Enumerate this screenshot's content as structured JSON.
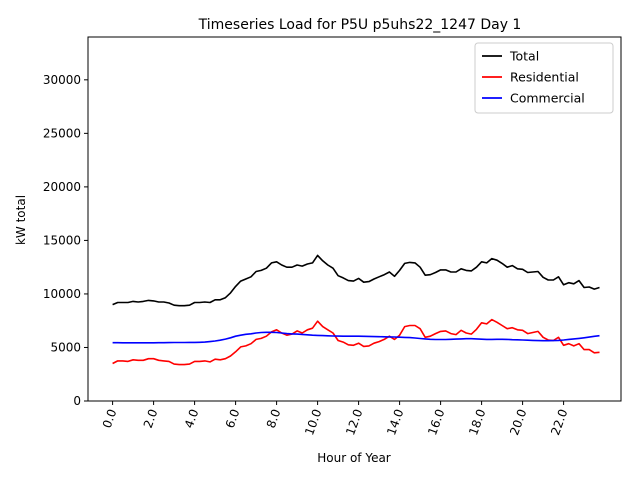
{
  "chart_data": {
    "type": "line",
    "title": "Timeseries Load for P5U p5uhs22_1247  Day 1",
    "xlabel": "Hour of Year",
    "ylabel": "kW total",
    "xlim": [
      -1.2,
      24.8
    ],
    "ylim": [
      0,
      34000
    ],
    "x_ticks": [
      0,
      2,
      4,
      6,
      8,
      10,
      12,
      14,
      16,
      18,
      20,
      22
    ],
    "x_tick_labels": [
      "0.0",
      "2.0",
      "4.0",
      "6.0",
      "8.0",
      "10.0",
      "12.0",
      "14.0",
      "16.0",
      "18.0",
      "20.0",
      "22.0"
    ],
    "y_ticks": [
      0,
      5000,
      10000,
      15000,
      20000,
      25000,
      30000
    ],
    "y_tick_labels": [
      "0",
      "5000",
      "10000",
      "15000",
      "20000",
      "25000",
      "30000"
    ],
    "legend_position": "top-right",
    "x": [
      0,
      0.25,
      0.5,
      0.75,
      1,
      1.25,
      1.5,
      1.75,
      2,
      2.25,
      2.5,
      2.75,
      3,
      3.25,
      3.5,
      3.75,
      4,
      4.25,
      4.5,
      4.75,
      5,
      5.25,
      5.5,
      5.75,
      6,
      6.25,
      6.5,
      6.75,
      7,
      7.25,
      7.5,
      7.75,
      8,
      8.25,
      8.5,
      8.75,
      9,
      9.25,
      9.5,
      9.75,
      10,
      10.25,
      10.5,
      10.75,
      11,
      11.25,
      11.5,
      11.75,
      12,
      12.25,
      12.5,
      12.75,
      13,
      13.25,
      13.5,
      13.75,
      14,
      14.25,
      14.5,
      14.75,
      15,
      15.25,
      15.5,
      15.75,
      16,
      16.25,
      16.5,
      16.75,
      17,
      17.25,
      17.5,
      17.75,
      18,
      18.25,
      18.5,
      18.75,
      19,
      19.25,
      19.5,
      19.75,
      20,
      20.25,
      20.5,
      20.75,
      21,
      21.25,
      21.5,
      21.75,
      22,
      22.25,
      22.5,
      22.75,
      23,
      23.25,
      23.5,
      23.75
    ],
    "series": [
      {
        "name": "Total",
        "color": "#000000",
        "values": [
          9000,
          9200,
          9200,
          9200,
          9300,
          9250,
          9300,
          9400,
          9350,
          9250,
          9250,
          9150,
          8950,
          8900,
          8900,
          8950,
          9200,
          9200,
          9250,
          9200,
          9450,
          9450,
          9650,
          10100,
          10700,
          11200,
          11400,
          11600,
          12100,
          12200,
          12400,
          12900,
          13000,
          12700,
          12500,
          12500,
          12700,
          12600,
          12800,
          12900,
          13600,
          13100,
          12700,
          12400,
          11700,
          11500,
          11250,
          11200,
          11450,
          11100,
          11150,
          11400,
          11600,
          11800,
          12050,
          11650,
          12200,
          12850,
          12950,
          12900,
          12500,
          11750,
          11800,
          12000,
          12250,
          12250,
          12050,
          12050,
          12350,
          12200,
          12150,
          12500,
          13000,
          12900,
          13300,
          13150,
          12850,
          12500,
          12650,
          12350,
          12300,
          12000,
          12050,
          12100,
          11550,
          11300,
          11300,
          11600,
          10850,
          11050,
          10950,
          11250,
          10600,
          10650,
          10450,
          10600
        ]
      },
      {
        "name": "Residential",
        "color": "#ff0000",
        "values": [
          3500,
          3750,
          3750,
          3700,
          3850,
          3800,
          3800,
          3950,
          3950,
          3800,
          3750,
          3700,
          3450,
          3400,
          3400,
          3450,
          3700,
          3700,
          3750,
          3650,
          3900,
          3850,
          3950,
          4200,
          4600,
          5050,
          5150,
          5350,
          5750,
          5850,
          6050,
          6450,
          6650,
          6350,
          6150,
          6250,
          6550,
          6350,
          6650,
          6800,
          7450,
          6950,
          6650,
          6350,
          5650,
          5500,
          5250,
          5200,
          5400,
          5100,
          5150,
          5400,
          5550,
          5750,
          6050,
          5750,
          6150,
          6950,
          7050,
          7050,
          6750,
          5950,
          6050,
          6300,
          6500,
          6550,
          6300,
          6200,
          6600,
          6350,
          6250,
          6700,
          7300,
          7200,
          7600,
          7350,
          7050,
          6750,
          6850,
          6650,
          6600,
          6300,
          6400,
          6500,
          5950,
          5700,
          5650,
          5950,
          5200,
          5350,
          5150,
          5350,
          4800,
          4800,
          4500,
          4550
        ]
      },
      {
        "name": "Commercial",
        "color": "#0000ff",
        "values": [
          5450,
          5445,
          5440,
          5435,
          5435,
          5435,
          5435,
          5435,
          5440,
          5445,
          5450,
          5455,
          5460,
          5460,
          5465,
          5470,
          5475,
          5480,
          5500,
          5550,
          5600,
          5680,
          5780,
          5900,
          6050,
          6150,
          6230,
          6280,
          6350,
          6400,
          6420,
          6420,
          6400,
          6350,
          6300,
          6270,
          6250,
          6220,
          6180,
          6150,
          6130,
          6110,
          6090,
          6070,
          6060,
          6050,
          6050,
          6050,
          6050,
          6040,
          6030,
          6020,
          6010,
          6000,
          5990,
          5980,
          5960,
          5940,
          5920,
          5880,
          5840,
          5800,
          5760,
          5740,
          5740,
          5740,
          5760,
          5780,
          5800,
          5820,
          5820,
          5800,
          5770,
          5750,
          5750,
          5760,
          5760,
          5750,
          5730,
          5720,
          5700,
          5680,
          5660,
          5640,
          5630,
          5630,
          5640,
          5660,
          5700,
          5750,
          5800,
          5850,
          5900,
          5970,
          6040,
          6100
        ]
      }
    ]
  }
}
